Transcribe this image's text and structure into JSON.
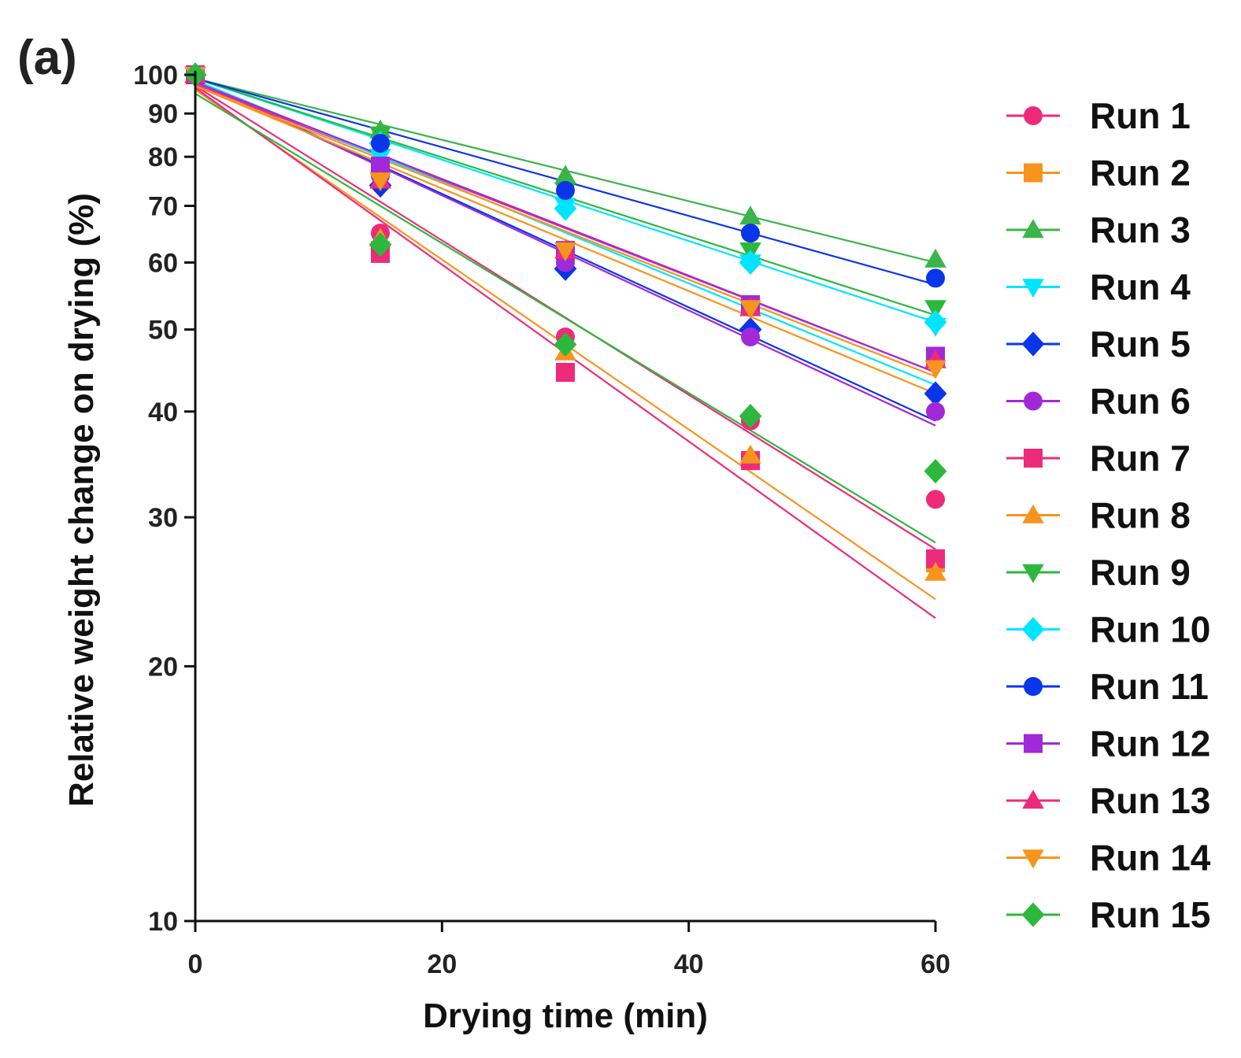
{
  "panel_label": "(a)",
  "chart_data": {
    "type": "scatter",
    "scale_y": "log",
    "xlabel": "Drying time (min)",
    "ylabel": "Relative weight change on drying (%)",
    "xlim": [
      0,
      60
    ],
    "ylim": [
      10,
      100
    ],
    "x_ticks": [
      0,
      20,
      40,
      60
    ],
    "x_tick_labels": [
      "0",
      "20",
      "40",
      "60"
    ],
    "y_ticks": [
      10,
      20,
      30,
      40,
      50,
      60,
      70,
      80,
      90,
      100
    ],
    "y_tick_labels": [
      "10",
      "20",
      "30",
      "40",
      "50",
      "60",
      "70",
      "80",
      "90",
      "100"
    ],
    "legend_position": "right",
    "x": [
      0,
      15,
      30,
      45,
      60
    ],
    "series": [
      {
        "name": "Run 1",
        "color": "#ee2a7b",
        "marker": "circle",
        "values": [
          100,
          65,
          49,
          39,
          31.5
        ],
        "fit": [
          97,
          27.5
        ]
      },
      {
        "name": "Run 2",
        "color": "#f7941d",
        "marker": "square",
        "values": [
          100,
          62,
          44.5,
          35,
          26.5
        ],
        "fit": [
          96,
          24
        ]
      },
      {
        "name": "Run 3",
        "color": "#39b54a",
        "marker": "triangle-up",
        "values": [
          100,
          86,
          76,
          68,
          60.5
        ],
        "fit": [
          99,
          60
        ]
      },
      {
        "name": "Run 4",
        "color": "#00e5ff",
        "marker": "triangle-down",
        "values": [
          100,
          80,
          70,
          60,
          50.5
        ],
        "fit": [
          99,
          51
        ]
      },
      {
        "name": "Run 5",
        "color": "#0a35e8",
        "marker": "diamond",
        "values": [
          100,
          74,
          59,
          50,
          42
        ],
        "fit": [
          98.5,
          39
        ]
      },
      {
        "name": "Run 6",
        "color": "#a12ad8",
        "marker": "circle",
        "values": [
          100,
          76,
          60,
          49,
          40
        ],
        "fit": [
          98.5,
          38.5
        ]
      },
      {
        "name": "Run 7",
        "color": "#ee2a7b",
        "marker": "square",
        "values": [
          100,
          61.5,
          44.5,
          35,
          26.8
        ],
        "fit": [
          97.5,
          44.5
        ]
      },
      {
        "name": "Run 8",
        "color": "#f7941d",
        "marker": "triangle-up",
        "values": [
          100,
          64,
          47,
          35.5,
          25.8
        ],
        "fit": [
          97,
          42
        ]
      },
      {
        "name": "Run 9",
        "color": "#2db83d",
        "marker": "triangle-down",
        "values": [
          100,
          85,
          73,
          62,
          53
        ],
        "fit": [
          99,
          52
        ]
      },
      {
        "name": "Run 10",
        "color": "#00e5ff",
        "marker": "diamond",
        "values": [
          100,
          83,
          69.5,
          60,
          51
        ],
        "fit": [
          98.5,
          43
        ]
      },
      {
        "name": "Run 11",
        "color": "#0a35e8",
        "marker": "circle",
        "values": [
          100,
          83,
          73,
          65,
          57.5
        ],
        "fit": [
          99,
          56.5
        ]
      },
      {
        "name": "Run 12",
        "color": "#a12ad8",
        "marker": "square",
        "values": [
          100,
          78,
          62,
          53.5,
          46.5
        ],
        "fit": [
          98,
          44.5
        ]
      },
      {
        "name": "Run 13",
        "color": "#ee2a7b",
        "marker": "triangle-up",
        "values": [
          100,
          75,
          62,
          53,
          46
        ],
        "fit": [
          96.5,
          22.8
        ]
      },
      {
        "name": "Run 14",
        "color": "#f7941d",
        "marker": "triangle-down",
        "values": [
          100,
          75,
          62,
          53,
          45
        ],
        "fit": [
          97,
          44
        ]
      },
      {
        "name": "Run 15",
        "color": "#2db83d",
        "marker": "diamond",
        "values": [
          100,
          63,
          48,
          39.5,
          34
        ],
        "fit": [
          95,
          28
        ]
      }
    ]
  }
}
